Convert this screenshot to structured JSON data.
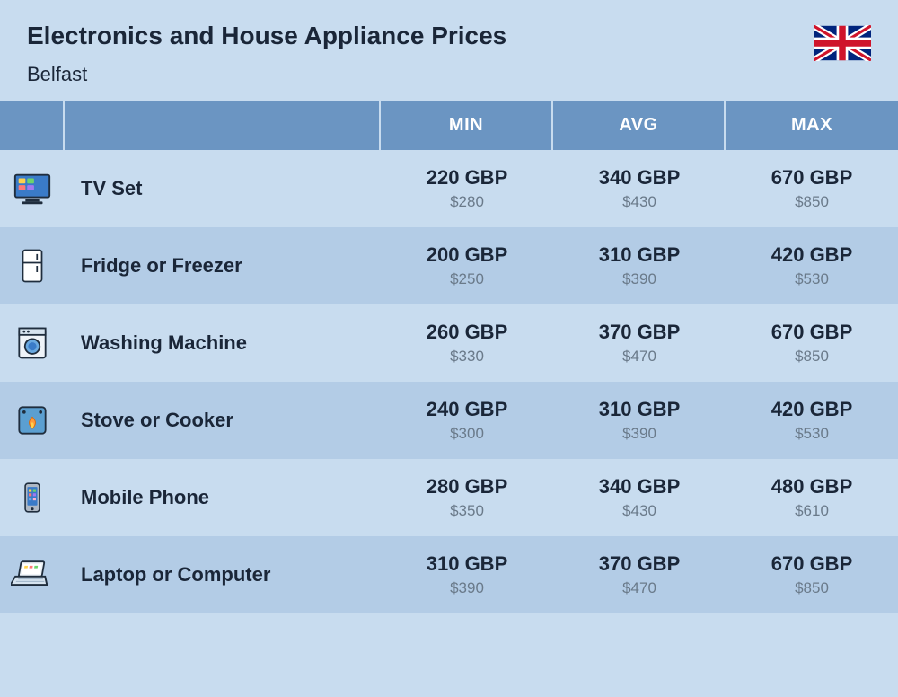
{
  "header": {
    "title": "Electronics and House Appliance Prices",
    "subtitle": "Belfast"
  },
  "table": {
    "columns": [
      "MIN",
      "AVG",
      "MAX"
    ],
    "rows": [
      {
        "icon": "tv-icon",
        "name": "TV Set",
        "min_gbp": "220 GBP",
        "min_usd": "$280",
        "avg_gbp": "340 GBP",
        "avg_usd": "$430",
        "max_gbp": "670 GBP",
        "max_usd": "$850"
      },
      {
        "icon": "fridge-icon",
        "name": "Fridge or Freezer",
        "min_gbp": "200 GBP",
        "min_usd": "$250",
        "avg_gbp": "310 GBP",
        "avg_usd": "$390",
        "max_gbp": "420 GBP",
        "max_usd": "$530"
      },
      {
        "icon": "washer-icon",
        "name": "Washing Machine",
        "min_gbp": "260 GBP",
        "min_usd": "$330",
        "avg_gbp": "370 GBP",
        "avg_usd": "$470",
        "max_gbp": "670 GBP",
        "max_usd": "$850"
      },
      {
        "icon": "stove-icon",
        "name": "Stove or Cooker",
        "min_gbp": "240 GBP",
        "min_usd": "$300",
        "avg_gbp": "310 GBP",
        "avg_usd": "$390",
        "max_gbp": "420 GBP",
        "max_usd": "$530"
      },
      {
        "icon": "phone-icon",
        "name": "Mobile Phone",
        "min_gbp": "280 GBP",
        "min_usd": "$350",
        "avg_gbp": "340 GBP",
        "avg_usd": "$430",
        "max_gbp": "480 GBP",
        "max_usd": "$610"
      },
      {
        "icon": "laptop-icon",
        "name": "Laptop or Computer",
        "min_gbp": "310 GBP",
        "min_usd": "$390",
        "avg_gbp": "370 GBP",
        "avg_usd": "$470",
        "max_gbp": "670 GBP",
        "max_usd": "$850"
      }
    ]
  },
  "colors": {
    "header_bg": "#6b95c2",
    "row_odd": "#c8dcef",
    "row_even": "#b3cce6",
    "text_dark": "#1a2638",
    "text_muted": "#6a7a8a"
  }
}
